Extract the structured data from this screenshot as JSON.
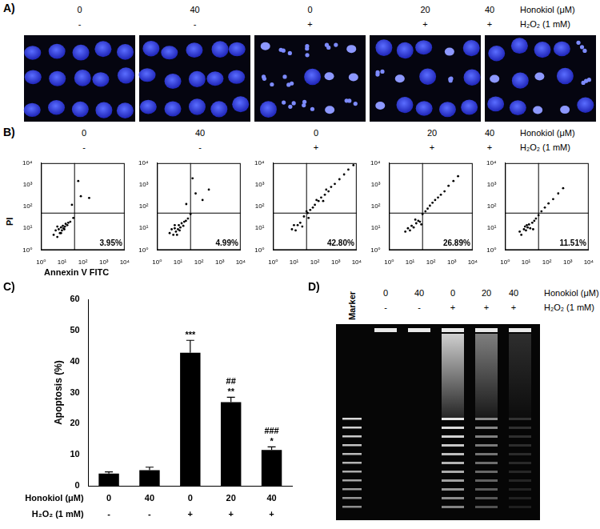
{
  "panels": {
    "A": {
      "label": "A)"
    },
    "B": {
      "label": "B)"
    },
    "C": {
      "label": "C)"
    },
    "D": {
      "label": "D)",
      "marker_label": "Marker"
    }
  },
  "treatments": [
    {
      "label": "Honokiol (μM)",
      "values": [
        0,
        40,
        0,
        20,
        40
      ]
    },
    {
      "label": "H₂O₂ (1 mM)",
      "values": [
        "-",
        "-",
        "+",
        "+",
        "+"
      ]
    }
  ],
  "chart_data": [
    {
      "type": "scatter",
      "log": true,
      "grid": false,
      "color": "#000000",
      "marker": "dot",
      "x_label": "Annexin V FITC",
      "y_label": "PI",
      "xlim": [
        1,
        10000
      ],
      "ylim": [
        1,
        10000
      ],
      "xticks": [
        {
          "value": 1,
          "label": "10⁰"
        },
        {
          "value": 10,
          "label": "10¹"
        },
        {
          "value": 100,
          "label": "10²"
        },
        {
          "value": 1000,
          "label": "10³"
        },
        {
          "value": 10000,
          "label": "10⁴"
        }
      ],
      "yticks": [
        {
          "value": 1,
          "label": "10⁰"
        },
        {
          "value": 10,
          "label": "10¹"
        },
        {
          "value": 100,
          "label": "10²"
        },
        {
          "value": 1000,
          "label": "10³"
        },
        {
          "value": 10000,
          "label": "10⁴"
        }
      ],
      "x": [
        4,
        5,
        6,
        7,
        8,
        9,
        10,
        11,
        12,
        14,
        15,
        18,
        20,
        25,
        6,
        9,
        13,
        35,
        80,
        60,
        200,
        30
      ],
      "values": [
        5,
        8,
        4,
        9,
        6,
        11,
        8,
        13,
        10,
        12,
        16,
        14,
        18,
        20,
        12,
        6,
        9,
        30,
        300,
        1500,
        250,
        120
      ],
      "quadrant_gate": {
        "x": 40,
        "y": 50
      },
      "annotation": {
        "value": 3.95,
        "label": "3.95%"
      }
    },
    {
      "type": "scatter",
      "log": true,
      "grid": false,
      "color": "#000000",
      "marker": "dot",
      "xlim": [
        1,
        10000
      ],
      "ylim": [
        1,
        10000
      ],
      "xticks": [
        {
          "value": 1,
          "label": "10⁰"
        },
        {
          "value": 10,
          "label": "10¹"
        },
        {
          "value": 100,
          "label": "10²"
        },
        {
          "value": 1000,
          "label": "10³"
        },
        {
          "value": 10000,
          "label": "10⁴"
        }
      ],
      "yticks": [
        {
          "value": 1,
          "label": "10⁰"
        },
        {
          "value": 10,
          "label": "10¹"
        },
        {
          "value": 100,
          "label": "10²"
        },
        {
          "value": 1000,
          "label": "10³"
        },
        {
          "value": 10000,
          "label": "10⁴"
        }
      ],
      "x": [
        4,
        5,
        6,
        7,
        8,
        10,
        11,
        13,
        15,
        18,
        20,
        24,
        30,
        7,
        9,
        12,
        40,
        70,
        150,
        50,
        300,
        25
      ],
      "values": [
        6,
        9,
        5,
        10,
        7,
        9,
        14,
        11,
        17,
        13,
        20,
        22,
        28,
        14,
        5,
        8,
        45,
        400,
        200,
        2000,
        600,
        130
      ],
      "quadrant_gate": {
        "x": 40,
        "y": 50
      },
      "annotation": {
        "value": 4.99,
        "label": "4.99%"
      }
    },
    {
      "type": "scatter",
      "log": true,
      "grid": false,
      "color": "#000000",
      "marker": "dot",
      "xlim": [
        1,
        10000
      ],
      "ylim": [
        1,
        10000
      ],
      "xticks": [
        {
          "value": 1,
          "label": "10⁰"
        },
        {
          "value": 10,
          "label": "10¹"
        },
        {
          "value": 100,
          "label": "10²"
        },
        {
          "value": 1000,
          "label": "10³"
        },
        {
          "value": 10000,
          "label": "10⁴"
        }
      ],
      "yticks": [
        {
          "value": 1,
          "label": "10⁰"
        },
        {
          "value": 10,
          "label": "10¹"
        },
        {
          "value": 100,
          "label": "10²"
        },
        {
          "value": 1000,
          "label": "10³"
        },
        {
          "value": 10000,
          "label": "10⁴"
        }
      ],
      "x": [
        8,
        12,
        15,
        20,
        25,
        30,
        45,
        60,
        80,
        100,
        150,
        200,
        300,
        450,
        600,
        900,
        1500,
        2500,
        4000,
        7000,
        10,
        50,
        120,
        350,
        40,
        250
      ],
      "values": [
        9,
        8,
        14,
        18,
        12,
        35,
        50,
        70,
        90,
        120,
        180,
        260,
        350,
        500,
        800,
        1100,
        1800,
        3000,
        5000,
        8000,
        14,
        30,
        200,
        600,
        60,
        180
      ],
      "quadrant_gate": {
        "x": 40,
        "y": 50
      },
      "annotation": {
        "value": 42.8,
        "label": "42.80%"
      }
    },
    {
      "type": "scatter",
      "log": true,
      "grid": false,
      "color": "#000000",
      "marker": "dot",
      "xlim": [
        1,
        10000
      ],
      "ylim": [
        1,
        10000
      ],
      "xticks": [
        {
          "value": 1,
          "label": "10⁰"
        },
        {
          "value": 10,
          "label": "10¹"
        },
        {
          "value": 100,
          "label": "10²"
        },
        {
          "value": 1000,
          "label": "10³"
        },
        {
          "value": 10000,
          "label": "10⁴"
        }
      ],
      "yticks": [
        {
          "value": 1,
          "label": "10⁰"
        },
        {
          "value": 10,
          "label": "10¹"
        },
        {
          "value": 100,
          "label": "10²"
        },
        {
          "value": 1000,
          "label": "10³"
        },
        {
          "value": 10000,
          "label": "10⁴"
        }
      ],
      "x": [
        6,
        8,
        10,
        12,
        15,
        20,
        25,
        30,
        40,
        55,
        70,
        90,
        120,
        160,
        220,
        300,
        450,
        700,
        1200,
        2000,
        18,
        35
      ],
      "values": [
        7,
        10,
        8,
        13,
        11,
        17,
        22,
        20,
        45,
        60,
        80,
        110,
        150,
        200,
        260,
        350,
        500,
        900,
        1500,
        2500,
        25,
        15
      ],
      "quadrant_gate": {
        "x": 40,
        "y": 50
      },
      "annotation": {
        "value": 26.89,
        "label": "26.89%"
      }
    },
    {
      "type": "scatter",
      "log": true,
      "grid": false,
      "color": "#000000",
      "marker": "dot",
      "xlim": [
        1,
        10000
      ],
      "ylim": [
        1,
        10000
      ],
      "xticks": [
        {
          "value": 1,
          "label": "10⁰"
        },
        {
          "value": 10,
          "label": "10¹"
        },
        {
          "value": 100,
          "label": "10²"
        },
        {
          "value": 1000,
          "label": "10³"
        },
        {
          "value": 10000,
          "label": "10⁴"
        }
      ],
      "yticks": [
        {
          "value": 1,
          "label": "10⁰"
        },
        {
          "value": 10,
          "label": "10¹"
        },
        {
          "value": 100,
          "label": "10²"
        },
        {
          "value": 1000,
          "label": "10³"
        },
        {
          "value": 10000,
          "label": "10⁴"
        }
      ],
      "x": [
        5,
        6,
        8,
        9,
        10,
        12,
        14,
        16,
        20,
        25,
        30,
        40,
        55,
        80,
        120,
        200,
        350,
        600,
        11,
        22
      ],
      "values": [
        7,
        5,
        9,
        12,
        8,
        11,
        15,
        10,
        18,
        22,
        28,
        40,
        60,
        90,
        140,
        220,
        400,
        700,
        14,
        9
      ],
      "quadrant_gate": {
        "x": 40,
        "y": 50
      },
      "annotation": {
        "value": 11.51,
        "label": "11.51%"
      }
    },
    {
      "type": "bar",
      "y_label": "Apoptosis (%)",
      "color": "#000000",
      "grid": false,
      "tick_labels": "y",
      "categories": [
        null,
        null,
        null,
        null,
        null
      ],
      "values": [
        3.95,
        4.99,
        42.8,
        26.89,
        11.51
      ],
      "errors": [
        0.5,
        1.0,
        4.0,
        1.6,
        1.0
      ],
      "significance_vs_control": [
        null,
        null,
        "***",
        "**",
        "*"
      ],
      "significance_vs_h2o2": [
        null,
        null,
        null,
        "##",
        "###"
      ],
      "ylim": [
        0,
        60
      ],
      "yticks": [
        0,
        10,
        20,
        30,
        40,
        50,
        60
      ]
    }
  ]
}
